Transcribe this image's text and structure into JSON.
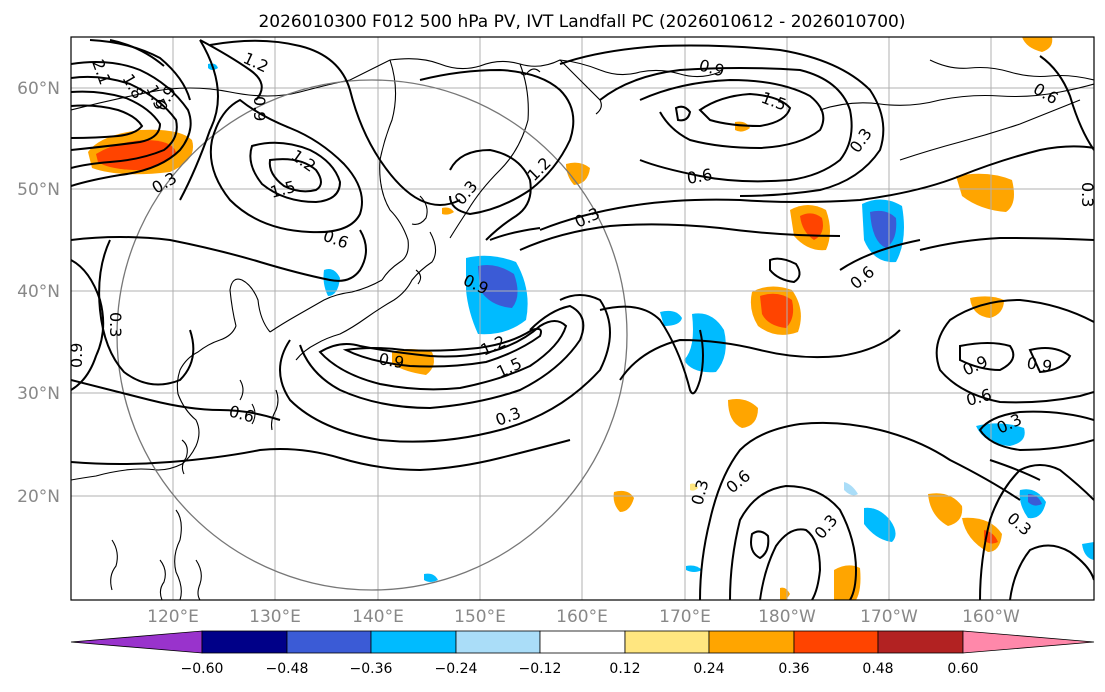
{
  "title": "2026010300 F012 500 hPa PV, IVT Landfall PC (2026010612 - 2026010700)",
  "lat_labels": [
    "60°N",
    "50°N",
    "40°N",
    "30°N",
    "20°N"
  ],
  "lon_labels": [
    "120°E",
    "130°E",
    "140°E",
    "150°E",
    "160°E",
    "170°E",
    "180°W",
    "170°W",
    "160°W"
  ],
  "colorbar": {
    "levels": [
      "−0.60",
      "−0.48",
      "−0.36",
      "−0.24",
      "−0.12",
      "0.12",
      "0.24",
      "0.36",
      "0.48",
      "0.60"
    ],
    "colors": [
      "#9933cc",
      "#000088",
      "#3b5bd6",
      "#00bbff",
      "#aaddf8",
      "#ffffff",
      "#ffe680",
      "#ffa500",
      "#ff4400",
      "#b22222",
      "#ff88aa"
    ]
  },
  "contour_labels": [
    "1.2",
    "2.1",
    "1.8",
    "1.5",
    "0.9",
    "0.3",
    "1.2",
    "1.5",
    "0.6",
    "0.3",
    "0.9",
    "1.2",
    "0.9",
    "1.5",
    "0.6",
    "0.3",
    "0.3",
    "0.9",
    "1.5",
    "1.2",
    "0.9",
    "0.6",
    "0.3",
    "0.6",
    "0.9",
    "0.6",
    "0.9",
    "0.3",
    "0.3",
    "0.6",
    "0.3",
    "0.3",
    "0.6",
    "0.3",
    "0.3",
    "0.9"
  ],
  "map": {
    "extent_lon": [
      110,
      210
    ],
    "extent_lat": [
      10,
      65
    ],
    "projection": "PlateCarree",
    "grid": true
  }
}
